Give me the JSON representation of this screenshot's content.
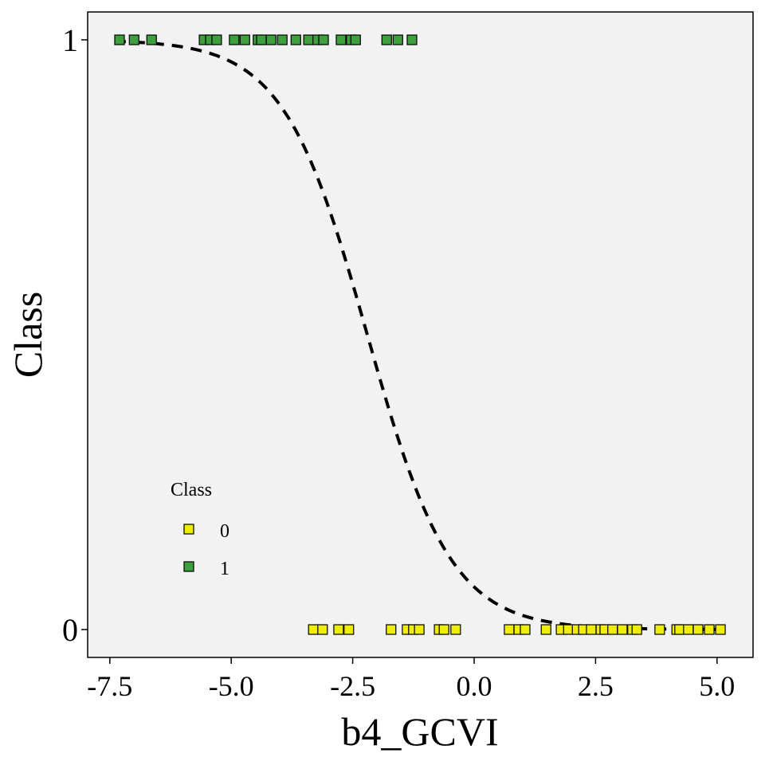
{
  "chart_data": {
    "type": "scatter",
    "xlabel": "b4_GCVI",
    "ylabel": "Class",
    "xlim": [
      -7.8,
      5.5
    ],
    "ylim": [
      -0.05,
      1.05
    ],
    "xticks": [
      "-7.5",
      "-5.0",
      "-2.5",
      "0.0",
      "2.5",
      "5.0"
    ],
    "xtick_values": [
      -7.5,
      -5.0,
      -2.5,
      0.0,
      2.5,
      5.0
    ],
    "yticks": [
      "0",
      "1"
    ],
    "ytick_values": [
      0,
      1
    ],
    "grid": false,
    "background": "#f2f2f2",
    "legend": {
      "title": "Class",
      "placement": "bottom-left",
      "entries": [
        {
          "label": "0",
          "color": "#eeee00"
        },
        {
          "label": "1",
          "color": "#3f9f3f"
        }
      ]
    },
    "series": [
      {
        "name": "0",
        "color": "#eeee00",
        "y": 0,
        "x": [
          -3.31,
          -3.12,
          -2.79,
          -2.58,
          -1.71,
          -1.38,
          -1.25,
          -1.13,
          -0.72,
          -0.62,
          -0.38,
          0.72,
          0.92,
          1.05,
          1.48,
          1.79,
          1.94,
          2.12,
          2.25,
          2.41,
          2.61,
          2.69,
          2.85,
          3.05,
          3.26,
          3.35,
          3.82,
          4.17,
          4.23,
          4.41,
          4.61,
          4.84,
          5.07
        ]
      },
      {
        "name": "1",
        "color": "#3f9f3f",
        "y": 1,
        "x": [
          -7.3,
          -7.0,
          -6.64,
          -5.56,
          -5.43,
          -5.3,
          -4.94,
          -4.72,
          -4.45,
          -4.38,
          -4.18,
          -3.95,
          -3.67,
          -3.41,
          -3.22,
          -3.1,
          -2.74,
          -2.53,
          -2.44,
          -1.8,
          -1.57,
          -1.28
        ]
      }
    ],
    "fit": {
      "type": "logistic",
      "style": "dashed",
      "color": "#000000",
      "midpoint": -2.2,
      "slope": -1.16,
      "x_range": [
        -7.4,
        5.0
      ]
    }
  }
}
